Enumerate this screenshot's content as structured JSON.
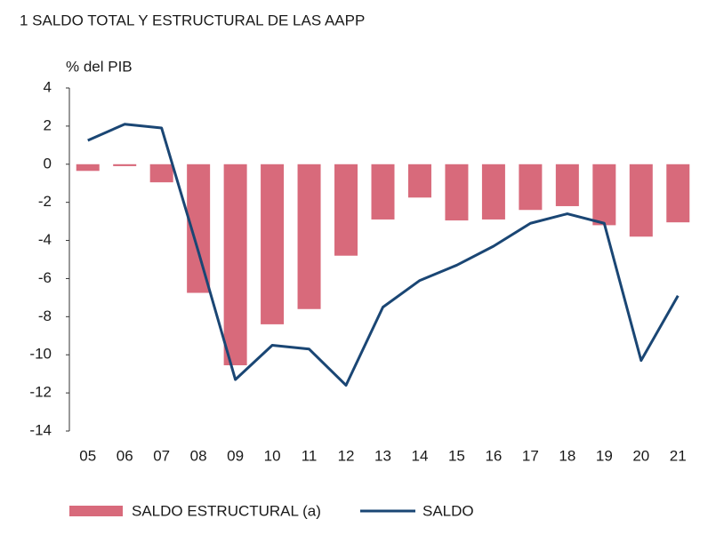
{
  "chart_data": {
    "type": "bar_line",
    "title": "1  SALDO TOTAL Y ESTRUCTURAL DE LAS AAPP",
    "y_label": "% del PIB",
    "categories": [
      "05",
      "06",
      "07",
      "08",
      "09",
      "10",
      "11",
      "12",
      "13",
      "14",
      "15",
      "16",
      "17",
      "18",
      "19",
      "20",
      "21"
    ],
    "series": [
      {
        "name": "SALDO ESTRUCTURAL (a)",
        "type": "bar",
        "color": "#d86a7b",
        "values": [
          -0.35,
          -0.1,
          -0.95,
          -6.75,
          -10.55,
          -8.4,
          -7.6,
          -4.8,
          -2.9,
          -1.75,
          -2.95,
          -2.9,
          -2.4,
          -2.2,
          -3.2,
          -3.8,
          -3.05
        ]
      },
      {
        "name": "SALDO",
        "type": "line",
        "color": "#1a4674",
        "values": [
          1.25,
          2.1,
          1.9,
          -4.6,
          -11.3,
          -9.5,
          -9.7,
          -11.6,
          -7.5,
          -6.1,
          -5.3,
          -4.3,
          -3.1,
          -2.6,
          -3.1,
          -10.3,
          -6.9
        ]
      }
    ],
    "ylim": [
      -14,
      4
    ],
    "yticks": [
      -14,
      -12,
      -10,
      -8,
      -6,
      -4,
      -2,
      0,
      2,
      4
    ],
    "grid": false,
    "legend": "bottom"
  }
}
